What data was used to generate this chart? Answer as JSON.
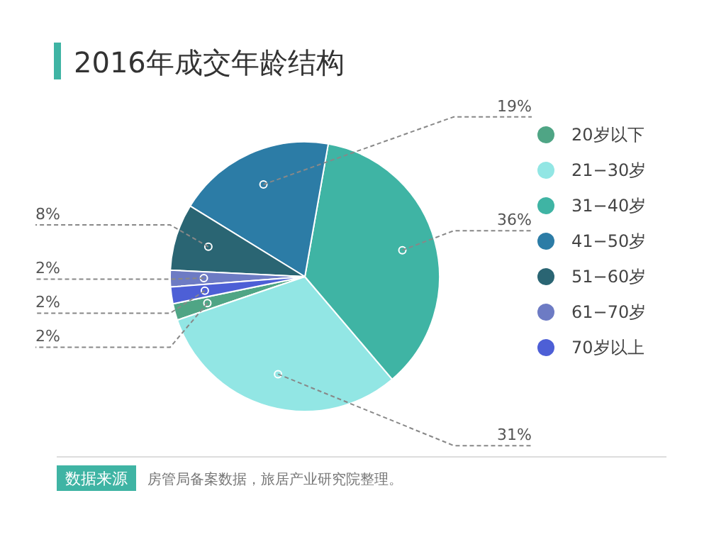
{
  "chart_data": {
    "type": "pie",
    "title": "2016年成交年龄结构",
    "categories": [
      "20岁以下",
      "21−30岁",
      "31−40岁",
      "41−50岁",
      "51−60岁",
      "61−70岁",
      "70岁以上"
    ],
    "values": [
      2,
      31,
      36,
      19,
      8,
      2,
      2
    ],
    "colors": [
      "#4fa585",
      "#92e6e4",
      "#3fb4a4",
      "#2c7ca6",
      "#2a6573",
      "#6d7bc4",
      "#4d5fd6"
    ],
    "value_labels": [
      "2%",
      "31%",
      "36%",
      "19%",
      "8%",
      "2%",
      "2%"
    ],
    "legend": "right",
    "annotations": [
      "数据来源",
      "房管局备案数据，旅居产业研究院整理。"
    ]
  }
}
